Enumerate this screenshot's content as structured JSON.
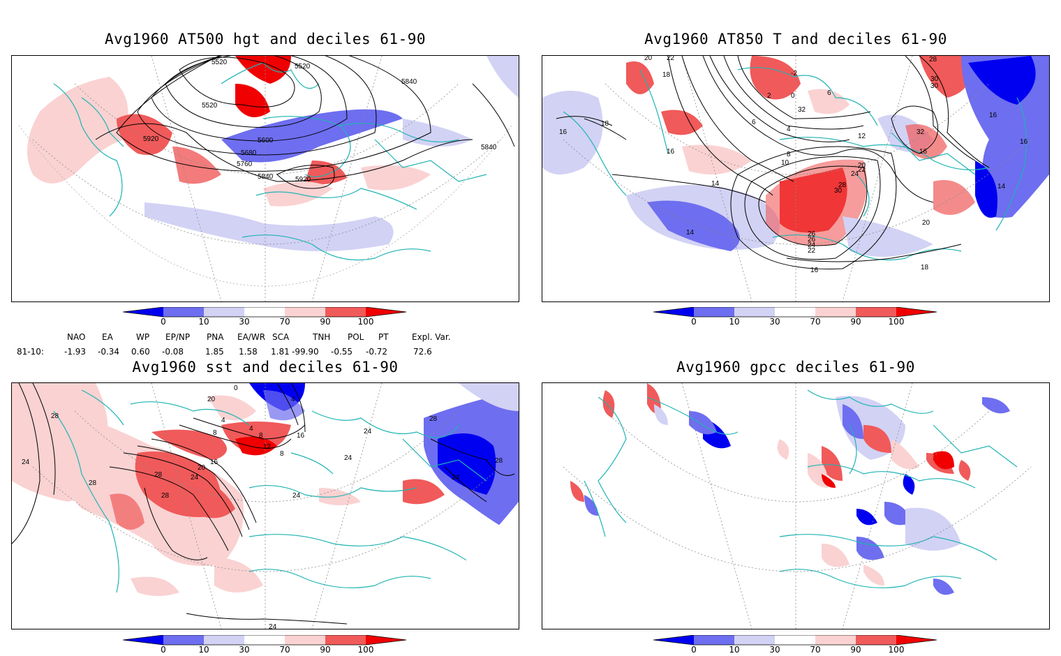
{
  "panels": [
    {
      "title": "Avg1960 AT500 hgt and deciles 61-90",
      "contour_labels": [
        "5520",
        "5520",
        "5520",
        "5840",
        "5920",
        "5600",
        "5680",
        "5760",
        "5840",
        "5920",
        "5840"
      ]
    },
    {
      "title": "Avg1960 AT850 T and deciles 61-90",
      "contour_labels": [
        "20",
        "22",
        "18",
        "16",
        "18",
        "16",
        "14",
        "14",
        "2",
        "-2",
        "0",
        "6",
        "32",
        "6",
        "4",
        "8",
        "10",
        "12",
        "20",
        "22",
        "24",
        "28",
        "30",
        "26",
        "26",
        "24",
        "22",
        "16",
        "20",
        "18",
        "28",
        "30",
        "30",
        "32",
        "16",
        "16",
        "14",
        "16"
      ]
    },
    {
      "title": "Avg1960 sst and deciles 61-90",
      "contour_labels": [
        "28",
        "24",
        "28",
        "28",
        "0",
        "20",
        "4",
        "8",
        "4",
        "8",
        "12",
        "20",
        "16",
        "24",
        "28",
        "24",
        "24",
        "24",
        "16",
        "8",
        "4",
        "28",
        "24",
        "28",
        "24"
      ]
    },
    {
      "title": "Avg1960 gpcc deciles 61-90",
      "contour_labels": []
    }
  ],
  "colorbar": {
    "labels": [
      "0",
      "10",
      "30",
      "70",
      "90",
      "100"
    ],
    "colors": [
      "#0000f0",
      "#6e6ef0",
      "#d2d2f5",
      "#ffffff",
      "#fad2d2",
      "#f05a5a",
      "#f00000"
    ]
  },
  "indices": {
    "headers": [
      "NAO",
      "EA",
      "WP",
      "EP/NP",
      "PNA",
      "EA/WR",
      "SCA",
      "TNH",
      "POL",
      "PT",
      "Expl. Var."
    ],
    "row_label": "81-10:",
    "values": [
      "-1.93",
      "-0.34",
      "0.60",
      "-0.08",
      "1.85",
      "1.58",
      "1.81",
      "-99.90",
      "-0.55",
      "-0.72",
      "72.6"
    ]
  },
  "map_colors": {
    "coast": "#1fb3b3",
    "grid": "#8a8a8a"
  }
}
